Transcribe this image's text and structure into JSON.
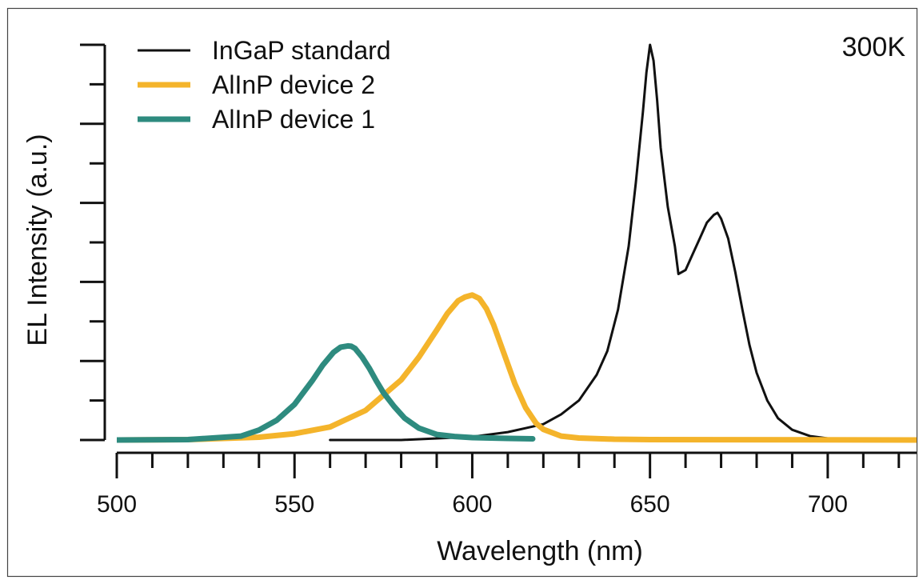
{
  "chart_data": {
    "type": "line",
    "title": "",
    "annotation": "300K",
    "xlabel": "Wavelength (nm)",
    "ylabel": "EL Intensity (a.u.)",
    "xlim": [
      500,
      725
    ],
    "ylim": [
      0,
      10
    ],
    "x_ticks": [
      500,
      550,
      600,
      650,
      700
    ],
    "x_tick_labels": [
      "500",
      "550",
      "600",
      "650",
      "700"
    ],
    "x_minor_step": 10,
    "y_tick_labels_shown": false,
    "y_major_step": 2,
    "y_minor_step": 1,
    "grid": false,
    "legend_position": "top-left",
    "series": [
      {
        "name": "InGaP standard",
        "color": "#111111",
        "line_style": "thin",
        "x": [
          560,
          580,
          600,
          610,
          615,
          620,
          625,
          630,
          635,
          638,
          641,
          644,
          646,
          648,
          649,
          650,
          651,
          652,
          653,
          655,
          657,
          658,
          660,
          662,
          664,
          666,
          668,
          669,
          670,
          672,
          674,
          676,
          678,
          680,
          683,
          686,
          690,
          695,
          700,
          710,
          725
        ],
        "y": [
          0,
          0,
          0.08,
          0.2,
          0.3,
          0.4,
          0.65,
          1.0,
          1.65,
          2.25,
          3.3,
          4.9,
          6.5,
          8.3,
          9.3,
          10.0,
          9.6,
          8.6,
          7.4,
          5.9,
          4.9,
          4.2,
          4.3,
          4.7,
          5.1,
          5.5,
          5.7,
          5.75,
          5.6,
          5.1,
          4.25,
          3.3,
          2.4,
          1.7,
          1.0,
          0.55,
          0.26,
          0.1,
          0.04,
          0.01,
          0
        ]
      },
      {
        "name": "AlInP device 2",
        "color": "#f4b42b",
        "line_style": "thick",
        "x": [
          500,
          520,
          540,
          550,
          560,
          570,
          580,
          585,
          590,
          593,
          596,
          598,
          600,
          602,
          604,
          606,
          608,
          610,
          612,
          615,
          618,
          620,
          625,
          630,
          640,
          650,
          725
        ],
        "y": [
          0,
          0.01,
          0.07,
          0.16,
          0.33,
          0.75,
          1.52,
          2.1,
          2.78,
          3.2,
          3.52,
          3.62,
          3.67,
          3.58,
          3.32,
          2.92,
          2.42,
          1.92,
          1.42,
          0.82,
          0.42,
          0.27,
          0.1,
          0.05,
          0.02,
          0.01,
          0
        ]
      },
      {
        "name": "AlInP device 1",
        "color": "#2e8b7f",
        "line_style": "thick",
        "x": [
          500,
          520,
          535,
          540,
          545,
          550,
          555,
          558,
          561,
          563,
          565,
          566,
          567,
          569,
          571,
          573,
          575,
          578,
          581,
          585,
          590,
          595,
          600,
          610,
          617
        ],
        "y": [
          0,
          0.01,
          0.1,
          0.25,
          0.5,
          0.9,
          1.5,
          1.9,
          2.22,
          2.35,
          2.38,
          2.37,
          2.32,
          2.1,
          1.82,
          1.5,
          1.2,
          0.85,
          0.55,
          0.3,
          0.14,
          0.09,
          0.06,
          0.04,
          0.03
        ]
      }
    ]
  }
}
